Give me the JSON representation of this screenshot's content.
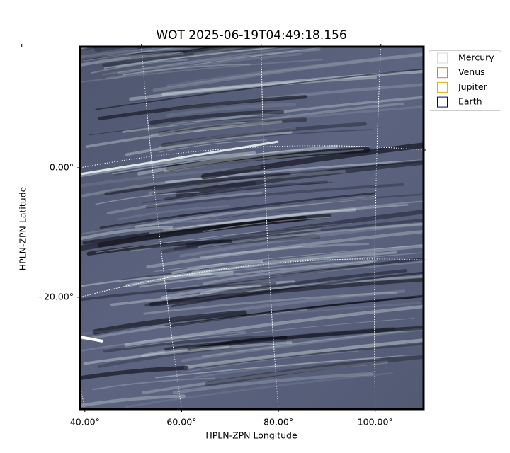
{
  "chart_data": {
    "type": "image",
    "title": "WOT 2025-06-19T04:49:18.156",
    "x_label": "HPLN-ZPN Longitude",
    "y_label": "HPLN-ZPN Latitude",
    "xlim": [
      39,
      110
    ],
    "ylim": [
      -37.3,
      18.7
    ],
    "xticks": [
      {
        "value": 40,
        "label": "40.00°"
      },
      {
        "value": 60,
        "label": "60.00°"
      },
      {
        "value": 80,
        "label": "80.00°"
      },
      {
        "value": 100,
        "label": "100.00°"
      }
    ],
    "yticks": [
      {
        "value": 0,
        "label": "0.00°"
      },
      {
        "value": -20,
        "label": "−20.00°"
      }
    ],
    "grid": true,
    "colormap": [
      "#0b0b14",
      "#5c6480",
      "#e6f4f0"
    ],
    "legend_position": "outside right",
    "series": [
      {
        "name": "Mercury",
        "color": "#d9d9d9"
      },
      {
        "name": "Venus",
        "color": "#e07b39"
      },
      {
        "name": "Jupiter",
        "color": "#e8b000"
      },
      {
        "name": "Earth",
        "color": "#000080"
      }
    ]
  }
}
